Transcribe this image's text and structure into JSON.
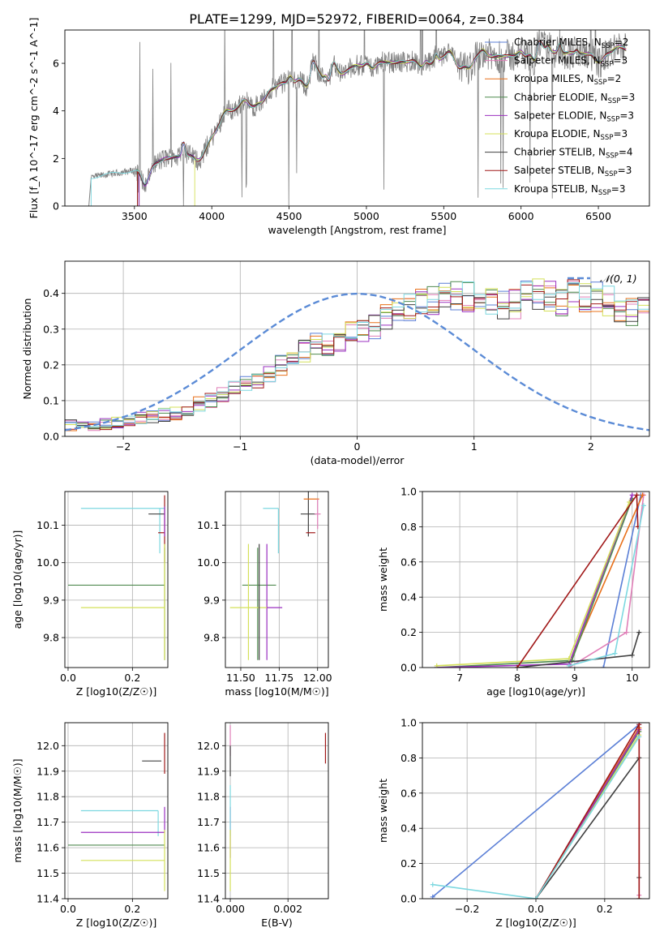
{
  "figure_title": "PLATE=1299, MJD=52972, FIBERID=0064, z=0.384",
  "palette": {
    "Chabrier MILES": "#5b7fd6",
    "Salpeter MILES": "#e07fb8",
    "Kroupa MILES": "#e8701a",
    "Chabrier ELODIE": "#4f8a4f",
    "Salpeter ELODIE": "#9b30c0",
    "Kroupa ELODIE": "#d4e05a",
    "Chabrier STELIB": "#404040",
    "Salpeter STELIB": "#a01818",
    "Kroupa STELIB": "#7dd8e0",
    "data": "#808080",
    "normal": "#5b8bd6"
  },
  "chart_data": [
    {
      "id": "spectrum",
      "type": "line",
      "title": "PLATE=1299, MJD=52972, FIBERID=0064, z=0.384",
      "xlabel": "wavelength [Angstrom, rest frame]",
      "ylabel": "Flux [f_λ 10^-17 erg cm^-2 s^-1 A^-1]",
      "xlim": [
        3050,
        6830
      ],
      "ylim": [
        0,
        7.4
      ],
      "xticks": [
        3500,
        4000,
        4500,
        5000,
        5500,
        6000,
        6500
      ],
      "yticks": [
        0,
        2,
        4,
        6
      ],
      "legend_loc": "upper-right",
      "legend": [
        {
          "model": "Chabrier MILES",
          "nssp": "2"
        },
        {
          "model": "Salpeter MILES",
          "nssp": "3"
        },
        {
          "model": "Kroupa MILES",
          "nssp": "2"
        },
        {
          "model": "Chabrier ELODIE",
          "nssp": "3"
        },
        {
          "model": "Salpeter ELODIE",
          "nssp": "3"
        },
        {
          "model": "Kroupa ELODIE",
          "nssp": "3"
        },
        {
          "model": "Chabrier STELIB",
          "nssp": "4"
        },
        {
          "model": "Salpeter STELIB",
          "nssp": "3"
        },
        {
          "model": "Kroupa STELIB",
          "nssp": "3"
        }
      ],
      "continuum": {
        "x": [
          3220,
          3300,
          3400,
          3500,
          3600,
          3700,
          3800,
          3900,
          4000,
          4100,
          4200,
          4300,
          4400,
          4500,
          4600,
          4700,
          4800,
          4900,
          5000,
          5100,
          5200,
          5300,
          5400,
          5500,
          5600,
          5700,
          5800,
          5900,
          6000,
          6100,
          6200,
          6300,
          6400,
          6500,
          6600,
          6680
        ],
        "y": [
          1.2,
          1.3,
          1.4,
          1.5,
          1.7,
          2.0,
          2.1,
          2.2,
          2.9,
          3.6,
          4.3,
          4.8,
          5.1,
          5.5,
          5.6,
          5.8,
          5.9,
          5.9,
          5.95,
          6.0,
          6.05,
          6.15,
          6.1,
          6.2,
          6.2,
          6.3,
          6.3,
          6.3,
          6.35,
          6.4,
          6.4,
          6.45,
          6.4,
          6.4,
          6.5,
          6.5
        ]
      },
      "model_start": [
        3530,
        3520,
        3530,
        3520,
        3530,
        3890,
        3520,
        3520,
        3220
      ]
    },
    {
      "id": "residuals",
      "type": "step",
      "xlabel": "(data-model)/error",
      "ylabel": "Normed distribution",
      "xlim": [
        -2.5,
        2.5
      ],
      "ylim": [
        0,
        0.49
      ],
      "xticks": [
        -2,
        -1,
        0,
        1,
        2
      ],
      "yticks": [
        0.0,
        0.1,
        0.2,
        0.3,
        0.4
      ],
      "bin_width": 0.1,
      "bin_start": -2.5,
      "reference_curve": {
        "label": "N(0,1)",
        "style": "dashed",
        "legend_loc": "upper-right"
      },
      "mean_histogram": [
        0.03,
        0.03,
        0.03,
        0.035,
        0.04,
        0.045,
        0.05,
        0.055,
        0.06,
        0.065,
        0.07,
        0.09,
        0.1,
        0.12,
        0.14,
        0.15,
        0.16,
        0.17,
        0.2,
        0.21,
        0.24,
        0.26,
        0.26,
        0.27,
        0.29,
        0.3,
        0.31,
        0.33,
        0.35,
        0.36,
        0.37,
        0.38,
        0.39,
        0.395,
        0.39,
        0.39,
        0.38,
        0.37,
        0.37,
        0.395,
        0.4,
        0.39,
        0.38,
        0.4,
        0.39,
        0.39,
        0.38,
        0.36,
        0.35,
        0.37,
        0.36,
        0.34,
        0.32,
        0.31,
        0.29,
        0.28,
        0.27,
        0.27,
        0.25,
        0.25,
        0.22,
        0.2,
        0.19,
        0.18,
        0.16,
        0.15,
        0.14,
        0.13,
        0.12,
        0.11,
        0.1,
        0.09,
        0.09,
        0.08,
        0.07,
        0.06,
        0.06,
        0.05,
        0.04,
        0.04,
        0.04,
        0.03,
        0.03,
        0.03,
        0.03,
        0.03,
        0.025,
        0.02,
        0.02,
        0.02,
        0.02,
        0.02,
        0.02,
        0.02,
        0.02,
        0.02,
        0.02,
        0.02,
        0.02,
        0.02
      ],
      "series_names": [
        "Chabrier MILES",
        "Salpeter MILES",
        "Kroupa MILES",
        "Chabrier ELODIE",
        "Salpeter ELODIE",
        "Kroupa ELODIE",
        "Chabrier STELIB",
        "Salpeter STELIB",
        "Kroupa STELIB"
      ]
    },
    {
      "id": "age_vs_Z",
      "type": "errorbar",
      "xlabel": "Z [log10(Z/Z☉)]",
      "ylabel": "age [log10(age/yr)]",
      "xlim": [
        -0.01,
        0.31
      ],
      "ylim": [
        9.72,
        10.19
      ],
      "xticks": [
        0.0,
        0.2
      ],
      "yticks": [
        9.8,
        9.9,
        10.0,
        10.1
      ],
      "points": [
        {
          "series": "Kroupa STELIB",
          "x": 0.285,
          "xerr": [
            0.245,
            0.015
          ],
          "y": 10.145,
          "yerr": [
            0.12,
            0.0
          ]
        },
        {
          "series": "Chabrier STELIB",
          "x": 0.295,
          "xerr": [
            0.045,
            0.005
          ],
          "y": 10.13,
          "yerr": [
            0.0,
            0.0
          ]
        },
        {
          "series": "Salpeter STELIB",
          "x": 0.3,
          "xerr": [
            0.02,
            0.0
          ],
          "y": 10.08,
          "yerr": [
            0.08,
            0.1
          ]
        },
        {
          "series": "Salpeter ELODIE",
          "x": 0.3,
          "xerr": [
            0.0,
            0.0
          ],
          "y": 10.11,
          "yerr": [
            0.04,
            0.04
          ]
        },
        {
          "series": "Chabrier ELODIE",
          "x": 0.3,
          "xerr": [
            0.3,
            0.0
          ],
          "y": 9.94,
          "yerr": [
            0.2,
            0.1
          ]
        },
        {
          "series": "Kroupa ELODIE",
          "x": 0.3,
          "xerr": [
            0.26,
            0.0
          ],
          "y": 9.88,
          "yerr": [
            0.14,
            0.17
          ]
        }
      ]
    },
    {
      "id": "age_vs_mass",
      "type": "errorbar",
      "xlabel": "mass [log10(M/M☉)]",
      "ylabel": "",
      "xlim": [
        11.4,
        12.07
      ],
      "ylim": [
        9.72,
        10.19
      ],
      "xticks": [
        11.5,
        11.75,
        12.0
      ],
      "yticks": [
        9.8,
        9.9,
        10.0,
        10.1
      ],
      "points": [
        {
          "series": "Kroupa STELIB",
          "x": 11.745,
          "xerr": [
            0.1,
            0.0
          ],
          "y": 10.145,
          "yerr": [
            0.12,
            0.0
          ]
        },
        {
          "series": "Chabrier STELIB",
          "x": 11.94,
          "xerr": [
            0.05,
            0.05
          ],
          "y": 10.13,
          "yerr": [
            0.06,
            0.06
          ]
        },
        {
          "series": "Kroupa MILES",
          "x": 11.96,
          "xerr": [
            0.05,
            0.05
          ],
          "y": 10.17,
          "yerr": [
            0.0,
            0.0
          ]
        },
        {
          "series": "Salpeter STELIB",
          "x": 11.955,
          "xerr": [
            0.03,
            0.03
          ],
          "y": 10.08,
          "yerr": [
            0.0,
            0.0
          ]
        },
        {
          "series": "Salpeter MILES",
          "x": 12.0,
          "xerr": [
            0.02,
            0.02
          ],
          "y": 10.13,
          "yerr": [
            0.04,
            0.04
          ]
        },
        {
          "series": "Chabrier ELODIE",
          "x": 11.61,
          "xerr": [
            0.1,
            0.12
          ],
          "y": 9.94,
          "yerr": [
            0.2,
            0.1
          ]
        },
        {
          "series": "Salpeter ELODIE",
          "x": 11.67,
          "xerr": [
            0.0,
            0.1
          ],
          "y": 9.88,
          "yerr": [
            0.14,
            0.17
          ]
        },
        {
          "series": "Kroupa ELODIE",
          "x": 11.55,
          "xerr": [
            0.12,
            0.12
          ],
          "y": 9.88,
          "yerr": [
            0.14,
            0.17
          ]
        },
        {
          "series": "Chabrier STELIB",
          "x": 11.62,
          "xerr": [
            0.0,
            0.0
          ],
          "y": 9.88,
          "yerr": [
            0.14,
            0.17
          ]
        }
      ]
    },
    {
      "id": "weight_vs_age",
      "type": "line",
      "xlabel": "age [log10(age/yr)]",
      "ylabel": "mass weight",
      "xlim": [
        6.35,
        10.3
      ],
      "ylim": [
        0,
        1
      ],
      "xticks": [
        7,
        8,
        9,
        10
      ],
      "yticks": [
        0.0,
        0.2,
        0.4,
        0.6,
        0.8,
        1.0
      ],
      "series": [
        {
          "name": "Chabrier MILES",
          "x": [
            9.5,
            10.15
          ],
          "y": [
            0.0,
            0.98
          ]
        },
        {
          "name": "Salpeter MILES",
          "x": [
            8.9,
            9.9,
            10.2
          ],
          "y": [
            0.0,
            0.2,
            0.98
          ]
        },
        {
          "name": "Kroupa MILES",
          "x": [
            8.9,
            10.18
          ],
          "y": [
            0.02,
            0.98
          ]
        },
        {
          "name": "Chabrier ELODIE",
          "x": [
            6.6,
            8.95,
            10.0
          ],
          "y": [
            0.0,
            0.04,
            0.96
          ]
        },
        {
          "name": "Salpeter ELODIE",
          "x": [
            6.6,
            8.9,
            10.0
          ],
          "y": [
            0.0,
            0.02,
            0.98
          ]
        },
        {
          "name": "Kroupa ELODIE",
          "x": [
            6.6,
            8.9,
            9.95
          ],
          "y": [
            0.01,
            0.05,
            0.94
          ]
        },
        {
          "name": "Chabrier STELIB",
          "x": [
            8.0,
            10.0,
            10.12
          ],
          "y": [
            0.0,
            0.07,
            0.2
          ]
        },
        {
          "name": "Salpeter STELIB",
          "x": [
            8.0,
            10.08,
            10.1
          ],
          "y": [
            0.0,
            0.98,
            0.8
          ]
        },
        {
          "name": "Kroupa STELIB",
          "x": [
            8.9,
            9.7,
            10.2
          ],
          "y": [
            0.01,
            0.08,
            0.92
          ]
        }
      ]
    },
    {
      "id": "mass_vs_Z",
      "type": "errorbar",
      "xlabel": "Z [log10(Z/Z☉)]",
      "ylabel": "mass [log10(M/M☉)]",
      "xlim": [
        -0.01,
        0.31
      ],
      "ylim": [
        11.4,
        12.09
      ],
      "xticks": [
        0.0,
        0.2
      ],
      "yticks": [
        11.4,
        11.5,
        11.6,
        11.7,
        11.8,
        11.9,
        12.0
      ],
      "points": [
        {
          "series": "Salpeter MILES",
          "x": 0.29,
          "xerr": [
            0.0,
            0.0
          ],
          "y": 12.02,
          "yerr": [
            0.0,
            0.0
          ]
        },
        {
          "series": "Chabrier STELIB",
          "x": 0.29,
          "xerr": [
            0.06,
            0.0
          ],
          "y": 11.94,
          "yerr": [
            0.0,
            0.0
          ]
        },
        {
          "series": "Salpeter STELIB",
          "x": 0.3,
          "xerr": [
            0.0,
            0.0
          ],
          "y": 11.96,
          "yerr": [
            0.07,
            0.09
          ]
        },
        {
          "series": "Kroupa STELIB",
          "x": 0.28,
          "xerr": [
            0.24,
            0.0
          ],
          "y": 11.745,
          "yerr": [
            0.1,
            0.0
          ]
        },
        {
          "series": "Salpeter ELODIE",
          "x": 0.3,
          "xerr": [
            0.26,
            0.0
          ],
          "y": 11.66,
          "yerr": [
            0.0,
            0.1
          ]
        },
        {
          "series": "Chabrier ELODIE",
          "x": 0.3,
          "xerr": [
            0.3,
            0.0
          ],
          "y": 11.61,
          "yerr": [
            0.0,
            0.0
          ]
        },
        {
          "series": "Kroupa ELODIE",
          "x": 0.3,
          "xerr": [
            0.26,
            0.0
          ],
          "y": 11.55,
          "yerr": [
            0.12,
            0.12
          ]
        }
      ]
    },
    {
      "id": "mass_vs_ebv",
      "type": "errorbar",
      "xlabel": "E(B-V)",
      "ylabel": "",
      "xlim": [
        -0.00017,
        0.0034
      ],
      "ylim": [
        11.4,
        12.09
      ],
      "xticks": [
        0.0,
        0.002
      ],
      "yticks": [
        11.4,
        11.5,
        11.6,
        11.7,
        11.8,
        11.9,
        12.0
      ],
      "points": [
        {
          "series": "Salpeter MILES",
          "x": 0.0,
          "xerr": [
            0.0,
            0.0
          ],
          "y": 12.02,
          "yerr": [
            0.06,
            0.06
          ]
        },
        {
          "series": "Chabrier STELIB",
          "x": 0.0,
          "xerr": [
            0.0,
            0.0
          ],
          "y": 11.94,
          "yerr": [
            0.06,
            0.06
          ]
        },
        {
          "series": "Salpeter ELODIE",
          "x": 0.0,
          "xerr": [
            0.0,
            0.0
          ],
          "y": 11.66,
          "yerr": [
            0.1,
            0.1
          ]
        },
        {
          "series": "Kroupa STELIB",
          "x": 0.0,
          "xerr": [
            0.0,
            0.0
          ],
          "y": 11.745,
          "yerr": [
            0.1,
            0.1
          ]
        },
        {
          "series": "Kroupa ELODIE",
          "x": 0.0,
          "xerr": [
            0.0,
            0.0
          ],
          "y": 11.55,
          "yerr": [
            0.12,
            0.12
          ]
        },
        {
          "series": "Salpeter STELIB",
          "x": 0.0033,
          "xerr": [
            0.0,
            0.0
          ],
          "y": 11.99,
          "yerr": [
            0.06,
            0.06
          ]
        }
      ]
    },
    {
      "id": "weight_vs_Z",
      "type": "line",
      "xlabel": "Z [log10(Z/Z☉)]",
      "ylabel": "mass weight",
      "xlim": [
        -0.33,
        0.33
      ],
      "ylim": [
        0,
        1
      ],
      "xticks": [
        -0.2,
        0.0,
        0.2
      ],
      "yticks": [
        0.0,
        0.2,
        0.4,
        0.6,
        0.8,
        1.0
      ],
      "series": [
        {
          "name": "Chabrier MILES",
          "x": [
            -0.3,
            0.3
          ],
          "y": [
            0.01,
            0.99
          ]
        },
        {
          "name": "Salpeter MILES",
          "x": [
            0.0,
            0.3,
            0.3
          ],
          "y": [
            0.0,
            0.97,
            0.02
          ]
        },
        {
          "name": "Kroupa MILES",
          "x": [
            0.0,
            0.3
          ],
          "y": [
            0.0,
            0.97
          ]
        },
        {
          "name": "Chabrier ELODIE",
          "x": [
            0.0,
            0.3
          ],
          "y": [
            0.0,
            0.95
          ]
        },
        {
          "name": "Salpeter ELODIE",
          "x": [
            0.0,
            0.3
          ],
          "y": [
            0.0,
            0.96
          ]
        },
        {
          "name": "Kroupa ELODIE",
          "x": [
            0.0,
            0.3
          ],
          "y": [
            0.0,
            0.93
          ]
        },
        {
          "name": "Chabrier STELIB",
          "x": [
            0.0,
            0.3,
            0.3
          ],
          "y": [
            0.0,
            0.8,
            0.12
          ]
        },
        {
          "name": "Salpeter STELIB",
          "x": [
            0.0,
            0.3,
            0.3
          ],
          "y": [
            0.0,
            0.99,
            0.0
          ]
        },
        {
          "name": "Kroupa STELIB",
          "x": [
            -0.3,
            0.0,
            0.3
          ],
          "y": [
            0.08,
            0.0,
            0.92
          ]
        }
      ]
    }
  ]
}
